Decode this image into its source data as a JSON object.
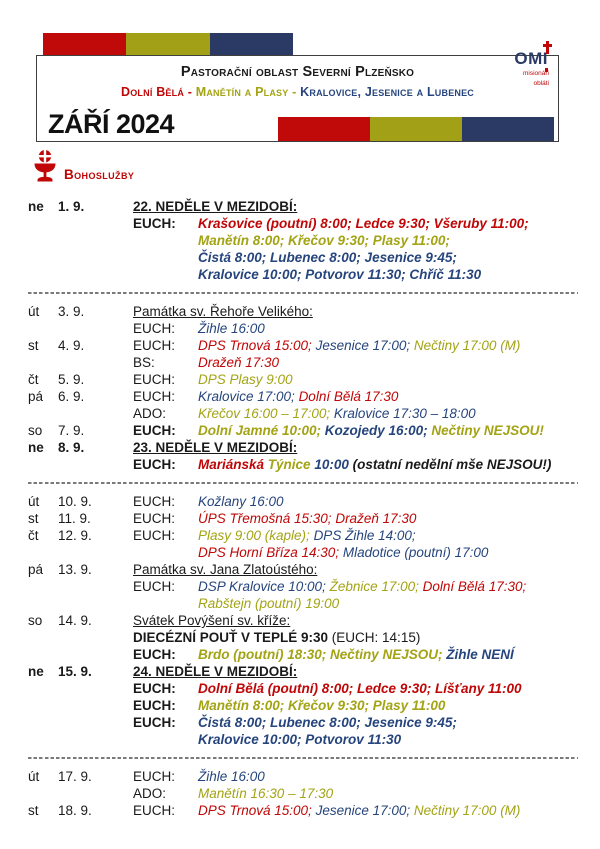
{
  "colors": {
    "r": "#c00606",
    "o": "#a3a314",
    "b": "#26457d",
    "k": "#1a1a1a"
  },
  "header": {
    "strip_colors": [
      "#c00a0a",
      "#a1a017",
      "#2b3a64"
    ],
    "title": "Pastorační oblast Severní Plzeňsko",
    "subtitle_parts": [
      {
        "text": "Dolní Bělá",
        "color": "r"
      },
      {
        "text": " - ",
        "color": "r"
      },
      {
        "text": "Manětín a Plasy",
        "color": "o"
      },
      {
        "text": " - ",
        "color": "o"
      },
      {
        "text": "Kralovice, Jesenice a Lubenec",
        "color": "b"
      }
    ],
    "month": "ZÁŘÍ 2024",
    "logo": {
      "text": "OMI",
      "cross_icon": "cross-icon",
      "line1": "misionáři",
      "line2": "obláti"
    }
  },
  "section": {
    "icon": "chalice-icon",
    "title": "Bohoslužby"
  },
  "schedule": [
    {
      "day": "ne",
      "date": "1. 9.",
      "b": 1,
      "lines": [
        {
          "label": "",
          "segs": [
            {
              "t": "22. NEDĚLE V MEZIDOBÍ:",
              "c": "k",
              "b": 1,
              "u": 1
            }
          ]
        },
        {
          "label": "EUCH:",
          "lb": 1,
          "segs": [
            {
              "t": "Krašovice (poutní) 8:00; Ledce 9:30; Všeruby 11:00;",
              "c": "r",
              "b": 1,
              "i": 1
            }
          ]
        },
        {
          "label": "",
          "ind": 1,
          "segs": [
            {
              "t": "Manětín 8:00; Křečov 9:30; Plasy 11:00;",
              "c": "o",
              "b": 1,
              "i": 1
            }
          ]
        },
        {
          "label": "",
          "ind": 1,
          "segs": [
            {
              "t": "Čistá 8:00; Lubenec 8:00; Jesenice 9:45;",
              "c": "b",
              "b": 1,
              "i": 1
            }
          ]
        },
        {
          "label": "",
          "ind": 1,
          "segs": [
            {
              "t": "Kralovice 10:00; Potvorov 11:30; Chříč 11:30",
              "c": "b",
              "b": 1,
              "i": 1
            }
          ]
        }
      ]
    },
    {
      "sep": 1
    },
    {
      "day": "út",
      "date": "3. 9.",
      "lines": [
        {
          "label": "",
          "segs": [
            {
              "t": "Památka sv. Řehoře Velikého:",
              "c": "k",
              "u": 1
            }
          ]
        },
        {
          "label": "EUCH:",
          "segs": [
            {
              "t": "Žihle 16:00",
              "c": "b",
              "i": 1
            }
          ]
        }
      ]
    },
    {
      "day": "st",
      "date": "4. 9.",
      "lines": [
        {
          "label": "EUCH:",
          "segs": [
            {
              "t": "DPS Trnová 15:00; ",
              "c": "r",
              "i": 1
            },
            {
              "t": "Jesenice 17:00; ",
              "c": "b",
              "i": 1
            },
            {
              "t": "Nečtiny 17:00 (M)",
              "c": "o",
              "i": 1
            }
          ]
        },
        {
          "label": "BS:",
          "segs": [
            {
              "t": "Dražeň 17:30",
              "c": "r",
              "i": 1
            }
          ]
        }
      ]
    },
    {
      "day": "čt",
      "date": "5. 9.",
      "lines": [
        {
          "label": "EUCH:",
          "segs": [
            {
              "t": "DPS Plasy 9:00",
              "c": "o",
              "i": 1
            }
          ]
        }
      ]
    },
    {
      "day": "pá",
      "date": "6. 9.",
      "lines": [
        {
          "label": "EUCH:",
          "segs": [
            {
              "t": "Kralovice 17:00; ",
              "c": "b",
              "i": 1
            },
            {
              "t": "Dolní Bělá 17:30",
              "c": "r",
              "i": 1
            }
          ]
        },
        {
          "label": "ADO:",
          "segs": [
            {
              "t": "Křečov 16:00 – 17:00; ",
              "c": "o",
              "i": 1
            },
            {
              "t": "Kralovice 17:30 – 18:00",
              "c": "b",
              "i": 1
            }
          ]
        }
      ]
    },
    {
      "day": "so",
      "date": "7. 9.",
      "lines": [
        {
          "label": "EUCH:",
          "lb": 1,
          "segs": [
            {
              "t": "Dolní Jamné 10:00; ",
              "c": "o",
              "b": 1,
              "i": 1
            },
            {
              "t": "Kozojedy 16:00; ",
              "c": "b",
              "b": 1,
              "i": 1
            },
            {
              "t": "Nečtiny NEJSOU!",
              "c": "o",
              "b": 1,
              "i": 1
            }
          ]
        }
      ]
    },
    {
      "day": "ne",
      "date": "8. 9.",
      "b": 1,
      "lines": [
        {
          "label": "",
          "segs": [
            {
              "t": "23. NEDĚLE V MEZIDOBÍ:",
              "c": "k",
              "b": 1,
              "u": 1
            }
          ]
        },
        {
          "label": "EUCH:",
          "lb": 1,
          "segs": [
            {
              "t": "Mariánská ",
              "c": "r",
              "b": 1,
              "i": 1
            },
            {
              "t": "Týnice ",
              "c": "o",
              "b": 1,
              "i": 1
            },
            {
              "t": "10:00 ",
              "c": "b",
              "b": 1,
              "i": 1
            },
            {
              "t": "(ostatní nedělní mše NEJSOU!)",
              "c": "k",
              "b": 1,
              "i": 1
            }
          ]
        }
      ]
    },
    {
      "sep": 1
    },
    {
      "day": "út",
      "date": "10. 9.",
      "lines": [
        {
          "label": "EUCH:",
          "segs": [
            {
              "t": "Kožlany 16:00",
              "c": "b",
              "i": 1
            }
          ]
        }
      ]
    },
    {
      "day": "st",
      "date": "11. 9.",
      "lines": [
        {
          "label": "EUCH:",
          "segs": [
            {
              "t": "ÚPS Třemošná 15:30; Dražeň 17:30",
              "c": "r",
              "i": 1
            }
          ]
        }
      ]
    },
    {
      "day": "čt",
      "date": "12. 9.",
      "lines": [
        {
          "label": "EUCH:",
          "segs": [
            {
              "t": "Plasy 9:00 (kaple); ",
              "c": "o",
              "i": 1
            },
            {
              "t": "DPS Žihle 14:00;",
              "c": "b",
              "i": 1
            }
          ]
        },
        {
          "label": "",
          "ind": 1,
          "segs": [
            {
              "t": "DPS Horní Bříza 14:30; ",
              "c": "r",
              "i": 1
            },
            {
              "t": "Mladotice (poutní) 17:00",
              "c": "b",
              "i": 1
            }
          ]
        }
      ]
    },
    {
      "day": "pá",
      "date": "13. 9.",
      "lines": [
        {
          "label": "",
          "segs": [
            {
              "t": "Památka sv. Jana Zlatoústého:",
              "c": "k",
              "u": 1
            }
          ]
        },
        {
          "label": "EUCH:",
          "segs": [
            {
              "t": "DSP Kralovice 10:00; ",
              "c": "b",
              "i": 1
            },
            {
              "t": "Žebnice 17:00; ",
              "c": "o",
              "i": 1
            },
            {
              "t": "Dolní Bělá 17:30;",
              "c": "r",
              "i": 1
            }
          ]
        },
        {
          "label": "",
          "ind": 1,
          "segs": [
            {
              "t": "Rabštejn (poutní) 19:00",
              "c": "o",
              "i": 1
            }
          ]
        }
      ]
    },
    {
      "day": "so",
      "date": "14. 9.",
      "lines": [
        {
          "label": "",
          "segs": [
            {
              "t": "Svátek Povýšení sv. kříže:",
              "c": "k",
              "u": 1
            }
          ]
        },
        {
          "label": "",
          "segs": [
            {
              "t": "DIECÉZNÍ POUŤ V TEPLÉ 9:30 ",
              "c": "k",
              "b": 1
            },
            {
              "t": "(EUCH: 14:15)",
              "c": "k"
            }
          ]
        },
        {
          "label": "EUCH:",
          "lb": 1,
          "segs": [
            {
              "t": "Brdo (poutní) 18:30; Nečtiny NEJSOU; ",
              "c": "o",
              "b": 1,
              "i": 1
            },
            {
              "t": "Žihle NENÍ",
              "c": "b",
              "b": 1,
              "i": 1
            }
          ]
        }
      ]
    },
    {
      "day": "ne",
      "date": "15. 9.",
      "b": 1,
      "lines": [
        {
          "label": "",
          "segs": [
            {
              "t": "24. NEDĚLE V MEZIDOBÍ:",
              "c": "k",
              "b": 1,
              "u": 1
            }
          ]
        },
        {
          "label": "EUCH:",
          "lb": 1,
          "segs": [
            {
              "t": "Dolní Bělá (poutní) 8:00; Ledce 9:30; Líšťany 11:00",
              "c": "r",
              "b": 1,
              "i": 1
            }
          ]
        },
        {
          "label": "EUCH:",
          "lb": 1,
          "segs": [
            {
              "t": "Manětín 8:00; Křečov 9:30; Plasy 11:00",
              "c": "o",
              "b": 1,
              "i": 1
            }
          ]
        },
        {
          "label": "EUCH:",
          "lb": 1,
          "segs": [
            {
              "t": "Čistá 8:00; Lubenec 8:00; Jesenice 9:45;",
              "c": "b",
              "b": 1,
              "i": 1
            }
          ]
        },
        {
          "label": "",
          "ind": 1,
          "segs": [
            {
              "t": "Kralovice 10:00; Potvorov 11:30",
              "c": "b",
              "b": 1,
              "i": 1
            }
          ]
        }
      ]
    },
    {
      "sep": 1
    },
    {
      "day": "út",
      "date": "17. 9.",
      "lines": [
        {
          "label": "EUCH:",
          "segs": [
            {
              "t": "Žihle 16:00",
              "c": "b",
              "i": 1
            }
          ]
        },
        {
          "label": "ADO:",
          "segs": [
            {
              "t": "Manětín 16:30 – 17:30",
              "c": "o",
              "i": 1
            }
          ]
        }
      ]
    },
    {
      "day": "st",
      "date": "18. 9.",
      "lines": [
        {
          "label": "EUCH:",
          "segs": [
            {
              "t": "DPS Trnová 15:00; ",
              "c": "r",
              "i": 1
            },
            {
              "t": "Jesenice 17:00; ",
              "c": "b",
              "i": 1
            },
            {
              "t": "Nečtiny 17:00 (M)",
              "c": "o",
              "i": 1
            }
          ]
        }
      ]
    }
  ]
}
